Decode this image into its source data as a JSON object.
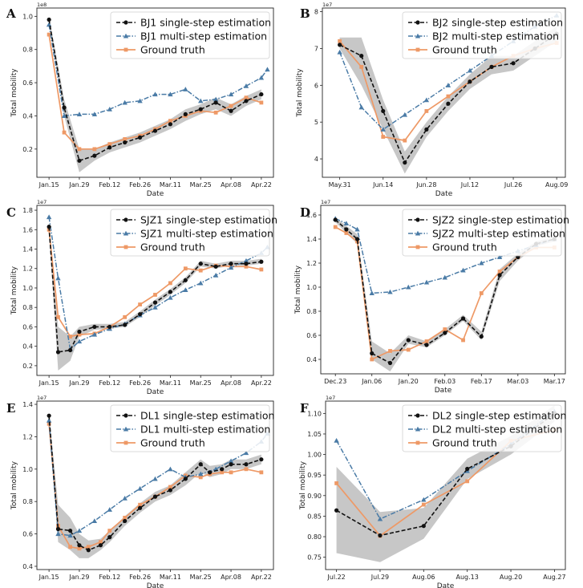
{
  "colors": {
    "single": "#111111",
    "multi": "#4a7ba6",
    "truth": "#ee9966",
    "band": "#bdbdbd"
  },
  "chart_data": [
    {
      "panel": "A",
      "type": "line",
      "ylabel": "Total mobility",
      "xlabel": "Date",
      "exponent": "1e8",
      "xticks": [
        "Jan.15",
        "Jan.29",
        "Feb.12",
        "Feb.26",
        "Mar.11",
        "Mar.25",
        "Apr.08",
        "Apr.22"
      ],
      "xlim": [
        -0.4,
        7.4
      ],
      "ylim": [
        0.03,
        1.05
      ],
      "yticks": [
        0.2,
        0.4,
        0.6,
        0.8,
        1.0
      ],
      "ydec": 1,
      "series": [
        {
          "name": "BJ1 single-step estimation",
          "style": "single",
          "x": [
            0,
            0.5,
            1,
            1.5,
            2,
            2.5,
            3,
            3.5,
            4,
            4.5,
            5,
            5.5,
            6,
            6.5,
            7
          ],
          "y": [
            0.98,
            0.45,
            0.13,
            0.16,
            0.21,
            0.24,
            0.27,
            0.31,
            0.35,
            0.41,
            0.44,
            0.48,
            0.43,
            0.49,
            0.53
          ]
        },
        {
          "name": "BJ1 multi-step estimation",
          "style": "multi",
          "x": [
            0,
            0.5,
            1,
            1.5,
            2,
            2.5,
            3,
            3.5,
            4,
            4.5,
            5,
            5.5,
            6,
            6.5,
            7,
            7.2
          ],
          "y": [
            0.95,
            0.4,
            0.41,
            0.41,
            0.44,
            0.48,
            0.49,
            0.53,
            0.53,
            0.56,
            0.49,
            0.5,
            0.53,
            0.58,
            0.63,
            0.68
          ]
        },
        {
          "name": "Ground truth",
          "style": "truth",
          "x": [
            0,
            0.5,
            1,
            1.5,
            2,
            2.5,
            3,
            3.5,
            4,
            4.5,
            5,
            5.5,
            6,
            6.5,
            7
          ],
          "y": [
            0.89,
            0.3,
            0.2,
            0.2,
            0.23,
            0.26,
            0.28,
            0.32,
            0.37,
            0.4,
            0.43,
            0.42,
            0.46,
            0.51,
            0.48
          ]
        }
      ],
      "band": {
        "x": [
          0,
          0.5,
          1,
          1.5,
          2,
          2.5,
          3,
          3.5,
          4,
          4.5,
          5,
          5.5,
          6,
          6.5,
          7
        ],
        "lower": [
          0.95,
          0.4,
          0.06,
          0.13,
          0.18,
          0.21,
          0.24,
          0.28,
          0.32,
          0.37,
          0.41,
          0.44,
          0.4,
          0.46,
          0.5
        ],
        "upper": [
          1.0,
          0.5,
          0.2,
          0.2,
          0.24,
          0.27,
          0.3,
          0.34,
          0.38,
          0.44,
          0.47,
          0.51,
          0.47,
          0.52,
          0.56
        ]
      },
      "legend": "top-right"
    },
    {
      "panel": "B",
      "type": "line",
      "ylabel": "Total mobility",
      "xlabel": "Date",
      "exponent": "1e7",
      "xticks": [
        "May.31",
        "Jun.14",
        "Jun.28",
        "Jul.12",
        "Jul.26",
        "Aug.09"
      ],
      "xlim": [
        -0.4,
        5.2
      ],
      "ylim": [
        3.5,
        8.1
      ],
      "yticks": [
        4,
        5,
        6,
        7,
        8
      ],
      "ydec": 0,
      "series": [
        {
          "name": "BJ2 single-step estimation",
          "style": "single",
          "x": [
            0,
            0.5,
            1,
            1.5,
            2,
            2.5,
            3,
            3.5,
            4,
            4.5,
            5
          ],
          "y": [
            7.1,
            6.8,
            5.3,
            3.9,
            4.8,
            5.5,
            6.1,
            6.5,
            6.6,
            7.0,
            7.4
          ]
        },
        {
          "name": "BJ2 multi-step estimation",
          "style": "multi",
          "x": [
            0,
            0.5,
            1,
            1.5,
            2,
            2.5,
            3,
            3.5,
            4,
            4.5,
            5
          ],
          "y": [
            6.9,
            5.4,
            4.8,
            5.2,
            5.6,
            6.0,
            6.4,
            6.8,
            7.2,
            7.6,
            7.9
          ]
        },
        {
          "name": "Ground truth",
          "style": "truth",
          "x": [
            0,
            0.5,
            1,
            1.5,
            2,
            2.5,
            3,
            3.5,
            4,
            4.5,
            5
          ],
          "y": [
            7.2,
            6.5,
            4.6,
            4.5,
            5.3,
            5.7,
            6.1,
            6.5,
            6.8,
            7.0,
            7.15
          ]
        }
      ],
      "band": {
        "x": [
          0,
          0.5,
          1,
          1.5,
          2,
          2.5,
          3,
          3.5,
          4,
          4.5,
          5
        ],
        "lower": [
          7.0,
          6.0,
          4.8,
          3.6,
          4.6,
          5.3,
          5.9,
          6.3,
          6.4,
          6.8,
          7.2
        ],
        "upper": [
          7.3,
          7.3,
          5.6,
          4.2,
          5.0,
          5.7,
          6.3,
          6.8,
          6.8,
          7.2,
          7.6
        ]
      },
      "legend": "top-right"
    },
    {
      "panel": "C",
      "type": "line",
      "ylabel": "Total mobility",
      "xlabel": "Date",
      "exponent": "1e7",
      "xticks": [
        "Jan.15",
        "Jan.29",
        "Feb.12",
        "Feb.26",
        "Mar.11",
        "Mar.25",
        "Apr.08",
        "Apr.22"
      ],
      "xlim": [
        -0.4,
        7.4
      ],
      "ylim": [
        0.1,
        1.85
      ],
      "yticks": [
        0.2,
        0.4,
        0.6,
        0.8,
        1.0,
        1.2,
        1.4,
        1.6,
        1.8
      ],
      "ydec": 1,
      "series": [
        {
          "name": "SJZ1 single-step estimation",
          "style": "single",
          "x": [
            0,
            0.3,
            0.7,
            1,
            1.5,
            2,
            2.5,
            3,
            3.5,
            4,
            4.5,
            5,
            5.5,
            6,
            6.5,
            7
          ],
          "y": [
            1.63,
            0.34,
            0.36,
            0.55,
            0.6,
            0.6,
            0.62,
            0.73,
            0.85,
            0.96,
            1.08,
            1.25,
            1.22,
            1.25,
            1.25,
            1.27
          ]
        },
        {
          "name": "SJZ1 multi-step estimation",
          "style": "multi",
          "x": [
            0,
            0.3,
            0.7,
            1,
            1.5,
            2,
            2.5,
            3,
            3.5,
            4,
            4.5,
            5,
            5.5,
            6,
            6.5,
            7,
            7.2
          ],
          "y": [
            1.73,
            1.1,
            0.37,
            0.45,
            0.52,
            0.58,
            0.63,
            0.72,
            0.8,
            0.9,
            0.98,
            1.05,
            1.13,
            1.21,
            1.28,
            1.36,
            1.42
          ]
        },
        {
          "name": "Ground truth",
          "style": "truth",
          "x": [
            0,
            0.3,
            0.7,
            1,
            1.5,
            2,
            2.5,
            3,
            3.5,
            4,
            4.5,
            5,
            5.5,
            6,
            6.5,
            7
          ],
          "y": [
            1.6,
            0.7,
            0.5,
            0.52,
            0.53,
            0.6,
            0.7,
            0.83,
            0.93,
            1.05,
            1.2,
            1.18,
            1.23,
            1.22,
            1.22,
            1.19
          ]
        }
      ],
      "band": {
        "x": [
          0,
          0.3,
          0.7,
          1,
          1.5,
          2,
          2.5,
          3,
          3.5,
          4,
          4.5,
          5,
          5.5,
          6,
          6.5,
          7
        ],
        "lower": [
          1.58,
          0.15,
          0.25,
          0.5,
          0.57,
          0.58,
          0.6,
          0.7,
          0.82,
          0.93,
          1.05,
          1.22,
          1.2,
          1.23,
          1.23,
          1.25
        ],
        "upper": [
          1.67,
          0.6,
          0.5,
          0.6,
          0.63,
          0.63,
          0.65,
          0.76,
          0.88,
          0.99,
          1.11,
          1.28,
          1.25,
          1.28,
          1.28,
          1.3
        ]
      },
      "legend": "top-right"
    },
    {
      "panel": "D",
      "type": "line",
      "ylabel": "Total mobility",
      "xlabel": "Date",
      "exponent": "1e7",
      "xticks": [
        "Dec.23",
        "Jan.06",
        "Jan.20",
        "Feb.03",
        "Feb.17",
        "Mar.03",
        "Mar.17"
      ],
      "xlim": [
        -0.4,
        6.3
      ],
      "ylim": [
        0.28,
        1.68
      ],
      "yticks": [
        0.4,
        0.6,
        0.8,
        1.0,
        1.2,
        1.4,
        1.6
      ],
      "ydec": 1,
      "series": [
        {
          "name": "SJZ2 single-step estimation",
          "style": "single",
          "x": [
            0,
            0.3,
            0.6,
            1,
            1.5,
            2,
            2.5,
            3,
            3.5,
            4,
            4.5,
            5,
            5.5,
            6
          ],
          "y": [
            1.56,
            1.48,
            1.4,
            0.45,
            0.37,
            0.56,
            0.52,
            0.62,
            0.74,
            0.59,
            1.1,
            1.25,
            1.36,
            1.4
          ]
        },
        {
          "name": "SJZ2 multi-step estimation",
          "style": "multi",
          "x": [
            0,
            0.3,
            0.6,
            1,
            1.5,
            2,
            2.5,
            3,
            3.5,
            4,
            4.5,
            5,
            5.5,
            6
          ],
          "y": [
            1.57,
            1.53,
            1.48,
            0.95,
            0.96,
            1.0,
            1.04,
            1.08,
            1.14,
            1.2,
            1.25,
            1.3,
            1.35,
            1.4
          ]
        },
        {
          "name": "Ground truth",
          "style": "truth",
          "x": [
            0,
            0.3,
            0.6,
            1,
            1.5,
            2,
            2.5,
            3,
            3.5,
            4,
            4.5,
            5,
            5.5,
            6
          ],
          "y": [
            1.5,
            1.45,
            1.38,
            0.4,
            0.47,
            0.48,
            0.55,
            0.65,
            0.56,
            0.95,
            1.13,
            1.25,
            1.33,
            1.33
          ]
        }
      ],
      "band": {
        "x": [
          0,
          0.3,
          0.6,
          1,
          1.5,
          2,
          2.5,
          3,
          3.5,
          4,
          4.5,
          5,
          5.5,
          6
        ],
        "lower": [
          1.54,
          1.45,
          1.36,
          0.4,
          0.3,
          0.53,
          0.5,
          0.6,
          0.72,
          0.56,
          1.05,
          1.22,
          1.34,
          1.38
        ],
        "upper": [
          1.58,
          1.51,
          1.44,
          0.55,
          0.45,
          0.6,
          0.55,
          0.65,
          0.77,
          0.63,
          1.15,
          1.28,
          1.38,
          1.42
        ]
      },
      "legend": "top-right"
    },
    {
      "panel": "E",
      "type": "line",
      "ylabel": "Total mobility",
      "xlabel": "Date",
      "exponent": "1e7",
      "xticks": [
        "Jan.15",
        "Jan.29",
        "Feb.12",
        "Feb.26",
        "Mar.11",
        "Mar.25",
        "Apr.08",
        "Apr.22"
      ],
      "xlim": [
        -0.4,
        7.4
      ],
      "ylim": [
        0.38,
        1.42
      ],
      "yticks": [
        0.4,
        0.6,
        0.8,
        1.0,
        1.2,
        1.4
      ],
      "ydec": 1,
      "series": [
        {
          "name": "DL1 single-step estimation",
          "style": "single",
          "x": [
            0,
            0.3,
            0.7,
            1,
            1.3,
            1.7,
            2,
            2.5,
            3,
            3.5,
            4,
            4.5,
            5,
            5.3,
            5.7,
            6,
            6.5,
            7
          ],
          "y": [
            1.33,
            0.63,
            0.62,
            0.53,
            0.5,
            0.53,
            0.58,
            0.68,
            0.76,
            0.83,
            0.87,
            0.94,
            1.03,
            0.98,
            1.0,
            1.03,
            1.03,
            1.06
          ]
        },
        {
          "name": "DL1 multi-step estimation",
          "style": "multi",
          "x": [
            0,
            0.3,
            0.7,
            1,
            1.5,
            2,
            2.5,
            3,
            3.5,
            4,
            4.5,
            5,
            5.5,
            6,
            6.5,
            7,
            7.2
          ],
          "y": [
            1.3,
            0.6,
            0.59,
            0.62,
            0.68,
            0.75,
            0.82,
            0.88,
            0.94,
            1.0,
            0.95,
            0.97,
            1.0,
            1.05,
            1.1,
            1.17,
            1.22
          ]
        },
        {
          "name": "Ground truth",
          "style": "truth",
          "x": [
            0,
            0.3,
            0.7,
            1,
            1.3,
            1.7,
            2,
            2.5,
            3,
            3.5,
            4,
            4.5,
            5,
            5.3,
            5.7,
            6,
            6.5,
            7
          ],
          "y": [
            1.28,
            0.65,
            0.52,
            0.51,
            0.52,
            0.55,
            0.62,
            0.7,
            0.78,
            0.83,
            0.89,
            0.96,
            0.95,
            0.97,
            0.98,
            0.98,
            1.0,
            0.98
          ]
        }
      ],
      "band": {
        "x": [
          0,
          0.3,
          0.7,
          1,
          1.3,
          1.7,
          2,
          2.5,
          3,
          3.5,
          4,
          4.5,
          5,
          5.3,
          5.7,
          6,
          6.5,
          7
        ],
        "lower": [
          1.3,
          0.55,
          0.5,
          0.45,
          0.45,
          0.5,
          0.55,
          0.65,
          0.73,
          0.8,
          0.84,
          0.9,
          0.98,
          0.95,
          0.97,
          1.0,
          1.0,
          1.03
        ],
        "upper": [
          1.35,
          0.78,
          0.7,
          0.6,
          0.56,
          0.57,
          0.62,
          0.71,
          0.79,
          0.86,
          0.9,
          0.98,
          1.06,
          1.02,
          1.03,
          1.06,
          1.06,
          1.09
        ]
      },
      "legend": "top-right"
    },
    {
      "panel": "F",
      "type": "line",
      "ylabel": "Total mobility",
      "xlabel": "Date",
      "exponent": "1e7",
      "xticks": [
        "Jul.22",
        "Jul.29",
        "Aug.06",
        "Aug.13",
        "Aug.20",
        "Aug.27"
      ],
      "xlim": [
        -0.25,
        5.25
      ],
      "ylim": [
        0.72,
        1.13
      ],
      "yticks": [
        0.75,
        0.8,
        0.85,
        0.9,
        0.95,
        1.0,
        1.05,
        1.1
      ],
      "ydec": 2,
      "series": [
        {
          "name": "DL2 single-step estimation",
          "style": "single",
          "x": [
            0,
            1,
            2,
            3,
            4,
            5
          ],
          "y": [
            0.864,
            0.803,
            0.826,
            0.965,
            1.02,
            1.1
          ]
        },
        {
          "name": "DL2 multi-step estimation",
          "style": "multi",
          "x": [
            0,
            1,
            2,
            3,
            4,
            5
          ],
          "y": [
            1.034,
            0.843,
            0.89,
            0.96,
            1.025,
            1.105
          ]
        },
        {
          "name": "Ground truth",
          "style": "truth",
          "x": [
            0,
            1,
            2,
            3,
            4,
            5
          ],
          "y": [
            0.93,
            0.802,
            0.878,
            0.935,
            1.033,
            1.06
          ]
        }
      ],
      "band": {
        "x": [
          0,
          1,
          2,
          3,
          4,
          5
        ],
        "lower": [
          0.76,
          0.738,
          0.795,
          0.94,
          1.0,
          1.08
        ],
        "upper": [
          0.97,
          0.86,
          0.87,
          0.99,
          1.045,
          1.12
        ]
      },
      "legend": "top-right"
    }
  ]
}
